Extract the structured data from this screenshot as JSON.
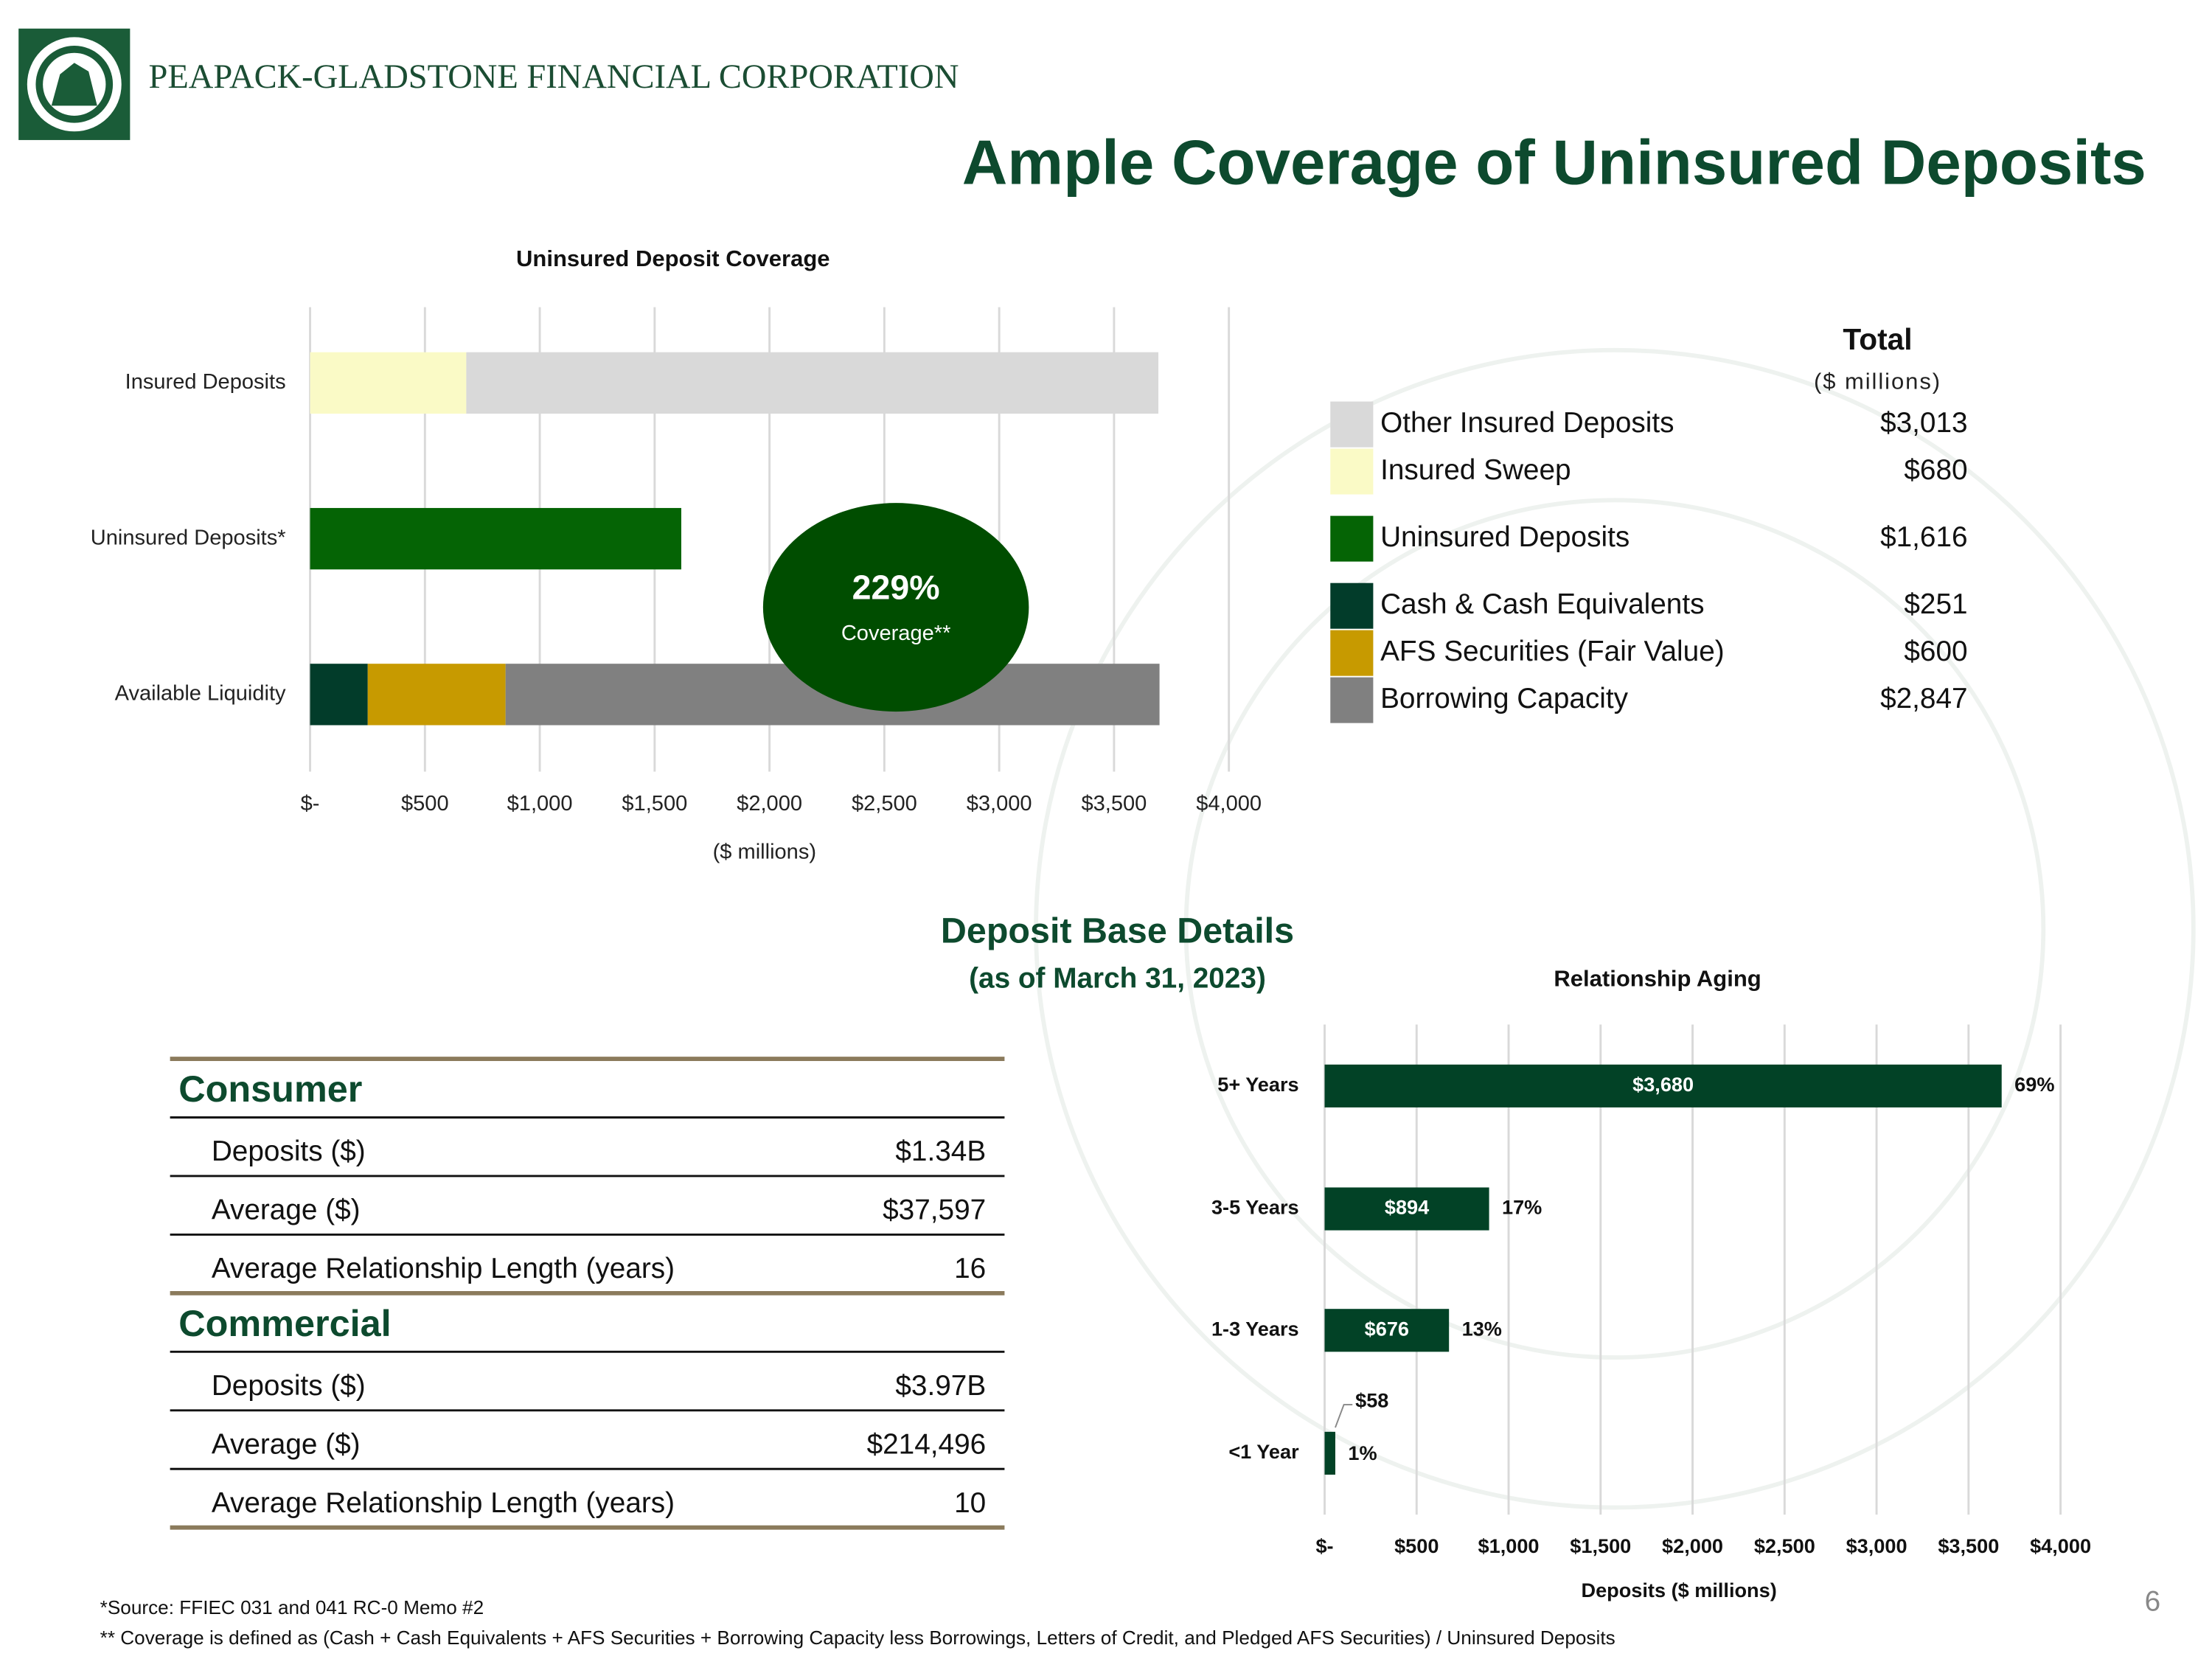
{
  "header": {
    "company": "PEAPACK-GLADSTONE FINANCIAL CORPORATION",
    "title": "Ample Coverage of Uninsured Deposits",
    "page_number": "6"
  },
  "chart_data": [
    {
      "type": "stacked-bar-horizontal",
      "title": "Uninsured Deposit Coverage",
      "categories": [
        "Insured Deposits",
        "Uninsured Deposits*",
        "Available Liquidity"
      ],
      "series": [
        {
          "name": "Insured Sweep",
          "color": "#fafac6",
          "values": [
            680,
            null,
            null
          ],
          "value_labels": [
            "$680",
            null,
            null
          ]
        },
        {
          "name": "Other Insured Deposits",
          "color": "#d9d9d9",
          "values": [
            3013,
            null,
            null
          ],
          "value_labels": [
            "$3,013",
            null,
            null
          ]
        },
        {
          "name": "Uninsured Deposits",
          "color": "#056405",
          "values": [
            null,
            1616,
            null
          ],
          "value_labels": [
            null,
            "$1,616",
            null
          ]
        },
        {
          "name": "Cash & Cash Equivalents",
          "color": "#023c2a",
          "values": [
            null,
            null,
            251
          ],
          "value_labels": [
            null,
            null,
            "$251"
          ]
        },
        {
          "name": "AFS Securities (Fair Value)",
          "color": "#c79a00",
          "values": [
            null,
            null,
            600
          ],
          "value_labels": [
            null,
            null,
            "$600"
          ]
        },
        {
          "name": "Borrowing Capacity",
          "color": "#808080",
          "values": [
            null,
            null,
            2847
          ],
          "value_labels": [
            null,
            null,
            "$2,847"
          ]
        }
      ],
      "xlim": [
        0,
        4000
      ],
      "xticks": [
        {
          "value": 0,
          "label": "$-"
        },
        {
          "value": 500,
          "label": "$500"
        },
        {
          "value": 1000,
          "label": "$1,000"
        },
        {
          "value": 1500,
          "label": "$1,500"
        },
        {
          "value": 2000,
          "label": "$2,000"
        },
        {
          "value": 2500,
          "label": "$2,500"
        },
        {
          "value": 3000,
          "label": "$3,000"
        },
        {
          "value": 3500,
          "label": "$3,500"
        },
        {
          "value": 4000,
          "label": "$4,000"
        }
      ],
      "x_label": "($ millions)",
      "grid": true,
      "legend_header": "Total",
      "legend_subheader": "($ millions)",
      "annotation": {
        "value_label": "229%",
        "text": "Coverage**"
      }
    },
    {
      "type": "bar-horizontal",
      "title": "Relationship Aging",
      "categories": [
        "5+ Years",
        "3-5 Years",
        "1-3 Years",
        "<1 Year"
      ],
      "values": [
        3680,
        894,
        676,
        58
      ],
      "value_labels": [
        "$3,680",
        "$894",
        "$676",
        "$58"
      ],
      "percent_labels": [
        "69%",
        "17%",
        "13%",
        "1%"
      ],
      "color": "#024226",
      "xlim": [
        0,
        4000
      ],
      "xticks": [
        {
          "value": 0,
          "label": "$-"
        },
        {
          "value": 500,
          "label": "$500"
        },
        {
          "value": 1000,
          "label": "$1,000"
        },
        {
          "value": 1500,
          "label": "$1,500"
        },
        {
          "value": 2000,
          "label": "$2,000"
        },
        {
          "value": 2500,
          "label": "$2,500"
        },
        {
          "value": 3000,
          "label": "$3,000"
        },
        {
          "value": 3500,
          "label": "$3,500"
        },
        {
          "value": 4000,
          "label": "$4,000"
        }
      ],
      "x_label": "Deposits ($ millions)",
      "grid": true
    }
  ],
  "deposit_details": {
    "title": "Deposit Base Details",
    "subtitle": "(as of March 31, 2023)",
    "sections": [
      {
        "name": "Consumer",
        "rows": [
          [
            "Deposits ($)",
            "$1.34B"
          ],
          [
            "Average ($)",
            "$37,597"
          ],
          [
            "Average Relationship Length (years)",
            "16"
          ]
        ]
      },
      {
        "name": "Commercial",
        "rows": [
          [
            "Deposits ($)",
            "$3.97B"
          ],
          [
            "Average ($)",
            "$214,496"
          ],
          [
            "Average Relationship Length (years)",
            "10"
          ]
        ]
      }
    ]
  },
  "footnotes": [
    "*Source: FFIEC 031 and 041 RC-0 Memo #2",
    "** Coverage is defined as (Cash + Cash Equivalents + AFS Securities + Borrowing Capacity less Borrowings, Letters of Credit, and Pledged AFS Securities) / Uninsured Deposits"
  ]
}
